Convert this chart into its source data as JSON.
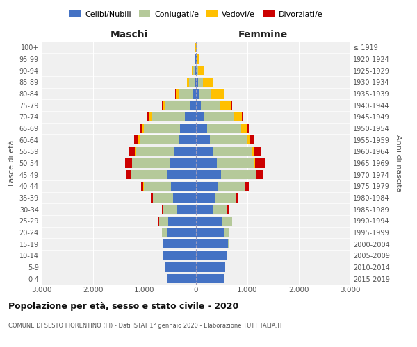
{
  "age_groups": [
    "0-4",
    "5-9",
    "10-14",
    "15-19",
    "20-24",
    "25-29",
    "30-34",
    "35-39",
    "40-44",
    "45-49",
    "50-54",
    "55-59",
    "60-64",
    "65-69",
    "70-74",
    "75-79",
    "80-84",
    "85-89",
    "90-94",
    "95-99",
    "100+"
  ],
  "birth_years": [
    "2015-2019",
    "2010-2014",
    "2005-2009",
    "2000-2004",
    "1995-1999",
    "1990-1994",
    "1985-1989",
    "1980-1984",
    "1975-1979",
    "1970-1974",
    "1965-1969",
    "1960-1964",
    "1955-1959",
    "1950-1954",
    "1945-1949",
    "1940-1944",
    "1935-1939",
    "1930-1934",
    "1925-1929",
    "1920-1924",
    "≤ 1919"
  ],
  "maschi": {
    "celibi": [
      570,
      600,
      650,
      640,
      570,
      540,
      360,
      440,
      490,
      570,
      510,
      420,
      340,
      310,
      220,
      110,
      50,
      25,
      15,
      8,
      4
    ],
    "coniugati": [
      2,
      3,
      4,
      10,
      90,
      180,
      290,
      400,
      530,
      700,
      730,
      750,
      760,
      710,
      650,
      480,
      280,
      110,
      40,
      10,
      2
    ],
    "vedovi": [
      0,
      0,
      0,
      0,
      0,
      1,
      1,
      2,
      3,
      5,
      10,
      15,
      20,
      30,
      40,
      55,
      60,
      40,
      20,
      8,
      3
    ],
    "divorziati": [
      0,
      0,
      0,
      1,
      3,
      8,
      15,
      30,
      50,
      90,
      130,
      130,
      80,
      40,
      30,
      20,
      12,
      5,
      2,
      0,
      0
    ]
  },
  "femmine": {
    "nubili": [
      550,
      570,
      600,
      620,
      540,
      500,
      330,
      380,
      430,
      490,
      410,
      340,
      270,
      220,
      160,
      90,
      55,
      40,
      15,
      8,
      4
    ],
    "coniugate": [
      2,
      3,
      4,
      15,
      100,
      200,
      280,
      400,
      530,
      680,
      720,
      740,
      720,
      660,
      570,
      370,
      230,
      90,
      30,
      8,
      2
    ],
    "vedove": [
      0,
      0,
      0,
      0,
      1,
      1,
      2,
      3,
      5,
      10,
      18,
      35,
      65,
      110,
      160,
      230,
      260,
      190,
      100,
      40,
      15
    ],
    "divorziate": [
      0,
      0,
      0,
      1,
      3,
      8,
      18,
      35,
      65,
      130,
      190,
      150,
      80,
      35,
      25,
      15,
      8,
      4,
      1,
      0,
      0
    ]
  },
  "color_celibi": "#4472c4",
  "color_coniugati": "#b5c99a",
  "color_vedovi": "#ffc000",
  "color_divorziati": "#cc0000",
  "xlim": 3000,
  "title": "Popolazione per età, sesso e stato civile - 2020",
  "subtitle": "COMUNE DI SESTO FIORENTINO (FI) - Dati ISTAT 1° gennaio 2020 - Elaborazione TUTTITALIA.IT",
  "ylabel_left": "Fasce di età",
  "ylabel_right": "Anni di nascita",
  "xlabel_maschi": "Maschi",
  "xlabel_femmine": "Femmine",
  "bg_color": "#f0f0f0"
}
